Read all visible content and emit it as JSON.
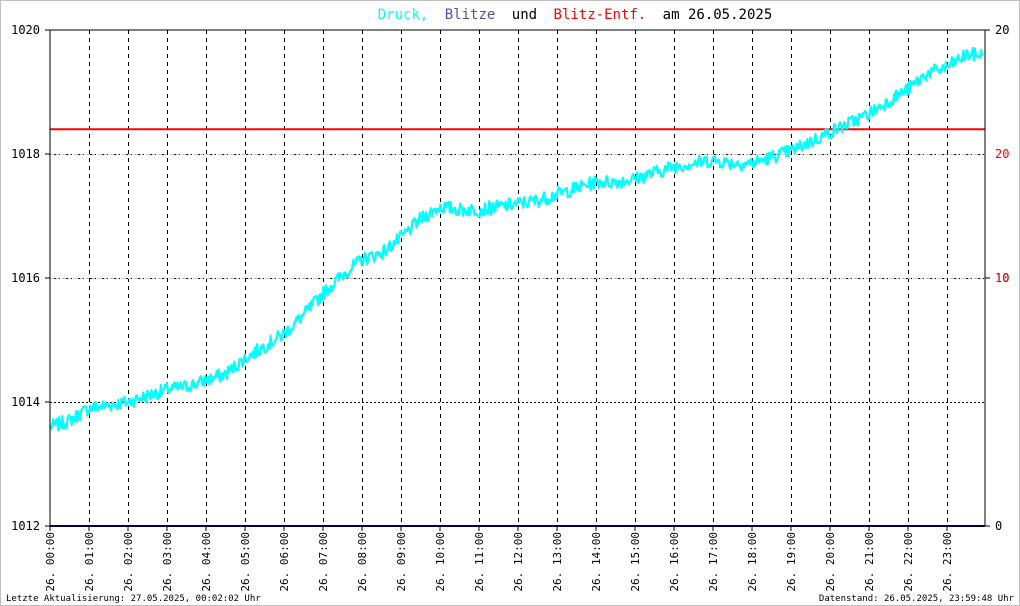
{
  "title": {
    "part1": "Druck,",
    "part2": "Blitze",
    "part3": "und",
    "part4": "Blitz-Entf.",
    "part5": "am 26.05.2025"
  },
  "colors": {
    "pressure": "#00ffff",
    "lightning": "#5050b0",
    "distance": "#ff0000",
    "text": "#000000",
    "grid": "#000000",
    "grid_light": "#c0c0c0",
    "baseline": "#000080"
  },
  "footer": {
    "left": "Letzte Aktualisierung: 27.05.2025, 00:02:02 Uhr",
    "right": "Datenstand: 26.05.2025, 23:59:48 Uhr"
  },
  "chart_data": {
    "type": "line",
    "x_ticks": [
      "26. 00:00",
      "26. 01:00",
      "26. 02:00",
      "26. 03:00",
      "26. 04:00",
      "26. 05:00",
      "26. 06:00",
      "26. 07:00",
      "26. 08:00",
      "26. 09:00",
      "26. 10:00",
      "26. 11:00",
      "26. 12:00",
      "26. 13:00",
      "26. 14:00",
      "26. 15:00",
      "26. 16:00",
      "26. 17:00",
      "26. 18:00",
      "26. 19:00",
      "26. 20:00",
      "26. 21:00",
      "26. 22:00",
      "26. 23:00"
    ],
    "y_left": {
      "ticks": [
        "1012",
        "1014",
        "1016",
        "1018",
        "1020"
      ],
      "ylim": [
        1012,
        1020
      ]
    },
    "y_right_black": {
      "ticks": [
        "0",
        "10",
        "20"
      ],
      "ylim": [
        0,
        20
      ]
    },
    "y_right_red": {
      "ticks": [
        "10",
        "20"
      ]
    },
    "series": [
      {
        "name": "Druck",
        "x_hours": [
          0.0,
          0.5,
          1.0,
          1.5,
          2.0,
          2.5,
          3.0,
          3.5,
          4.0,
          4.5,
          5.0,
          5.5,
          6.0,
          6.5,
          7.0,
          7.5,
          8.0,
          8.5,
          9.0,
          9.5,
          10.0,
          10.5,
          11.0,
          11.5,
          12.0,
          12.5,
          13.0,
          13.5,
          14.0,
          14.5,
          15.0,
          15.5,
          16.0,
          16.5,
          17.0,
          17.5,
          18.0,
          18.5,
          19.0,
          19.5,
          20.0,
          20.5,
          21.0,
          21.5,
          22.0,
          22.5,
          23.0,
          23.5,
          23.9
        ],
        "values": [
          1013.6,
          1013.7,
          1013.9,
          1013.95,
          1014.0,
          1014.1,
          1014.2,
          1014.25,
          1014.35,
          1014.45,
          1014.7,
          1014.9,
          1015.1,
          1015.4,
          1015.75,
          1016.05,
          1016.3,
          1016.4,
          1016.65,
          1016.95,
          1017.15,
          1017.1,
          1017.1,
          1017.15,
          1017.2,
          1017.25,
          1017.35,
          1017.45,
          1017.55,
          1017.55,
          1017.6,
          1017.7,
          1017.8,
          1017.85,
          1017.9,
          1017.85,
          1017.85,
          1017.95,
          1018.05,
          1018.2,
          1018.35,
          1018.5,
          1018.65,
          1018.85,
          1019.05,
          1019.3,
          1019.4,
          1019.6,
          1019.6
        ]
      },
      {
        "name": "Blitze",
        "values_constant": 0
      },
      {
        "name": "Blitz-Entf.",
        "values_constant": 1018.4
      }
    ]
  }
}
